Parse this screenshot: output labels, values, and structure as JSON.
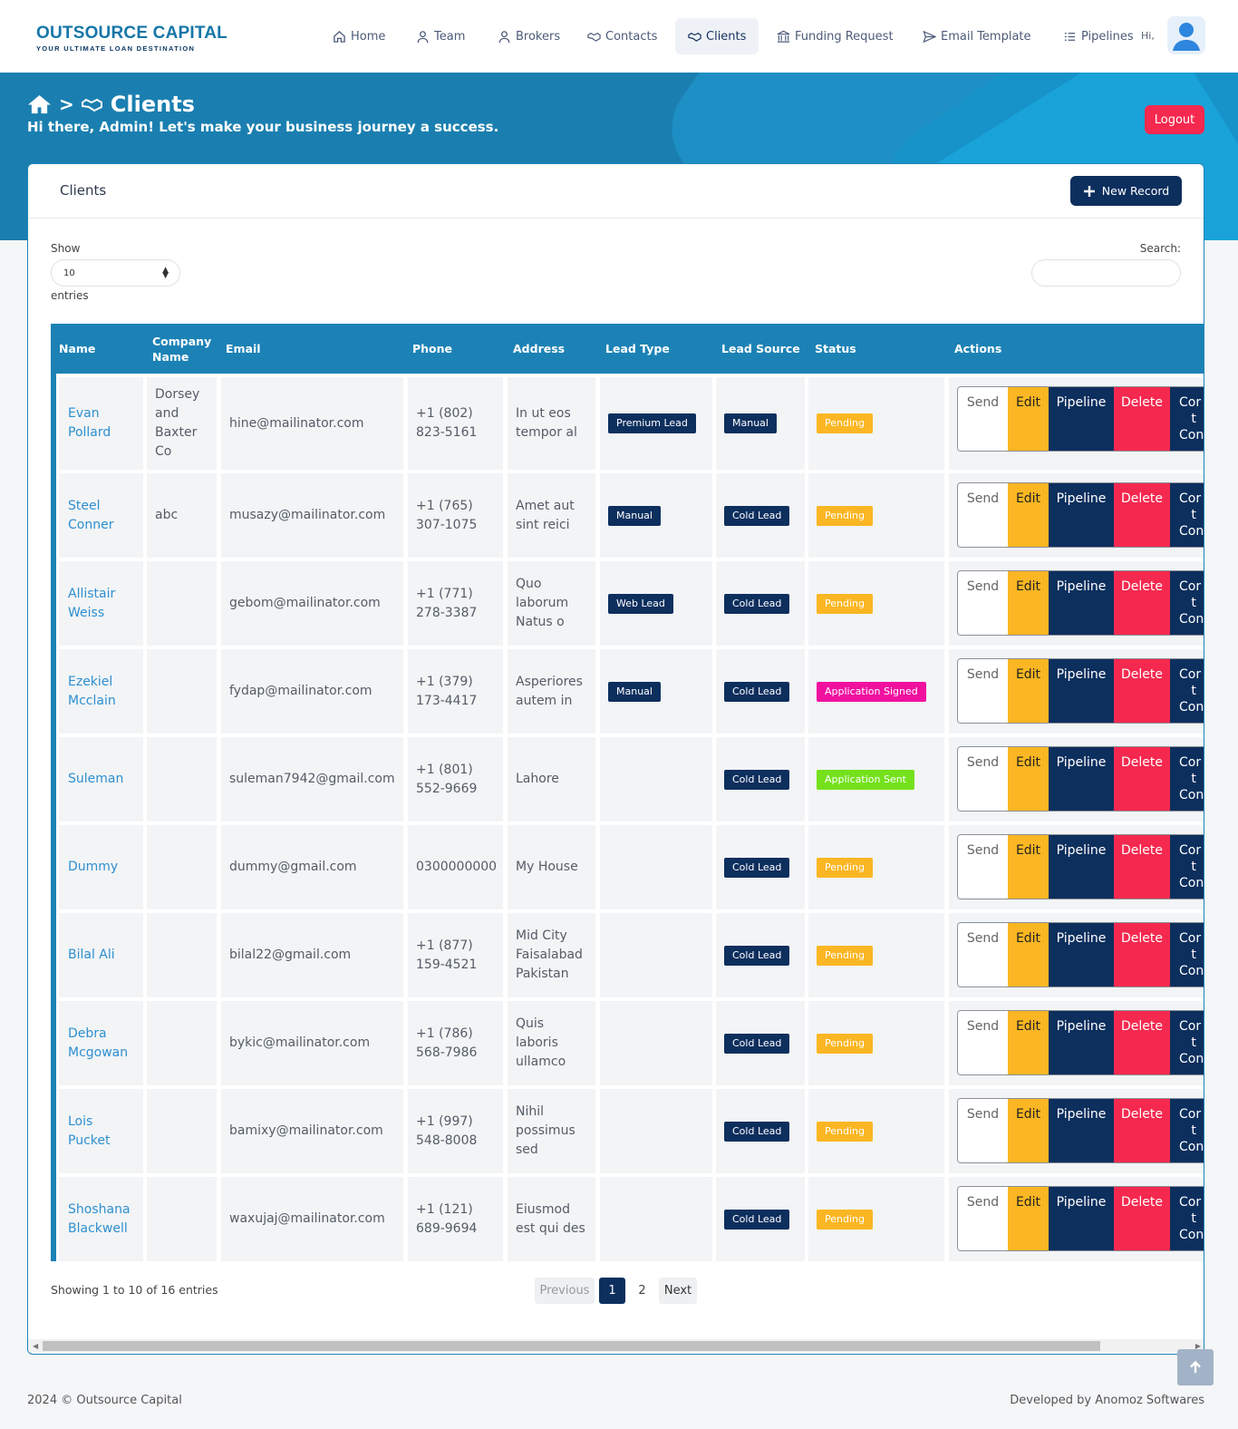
{
  "brand": {
    "title": "OUTSOURCE CAPITAL",
    "tagline": "YOUR ULTIMATE LOAN DESTINATION"
  },
  "nav": [
    {
      "label": "Home",
      "icon": "home-icon"
    },
    {
      "label": "Team",
      "icon": "user-icon"
    },
    {
      "label": "Brokers",
      "icon": "user-icon"
    },
    {
      "label": "Contacts",
      "icon": "handshake-icon"
    },
    {
      "label": "Clients",
      "icon": "handshake-icon",
      "active": true
    },
    {
      "label": "Funding Request",
      "icon": "bank-icon"
    },
    {
      "label": "Email Template",
      "icon": "send-icon"
    },
    {
      "label": "Pipelines",
      "icon": "list-icon"
    }
  ],
  "user": {
    "greeting": "Hi,",
    "avatar": "avatar-icon"
  },
  "header": {
    "separator": ">",
    "title": "Clients",
    "subtitle": "Hi there, Admin! Let's make your business journey a success.",
    "logout": "Logout"
  },
  "card": {
    "title": "Clients",
    "new_button": "New Record"
  },
  "controls": {
    "show_label": "Show",
    "show_value": "10",
    "entries_label": "entries",
    "search_label": "Search:"
  },
  "columns": [
    "Name",
    "Company Name",
    "Email",
    "Phone",
    "Address",
    "Lead Type",
    "Lead Source",
    "Status",
    "Actions"
  ],
  "actions": {
    "send": "Send",
    "edit": "Edit",
    "pipeline": "Pipeline",
    "delete": "Delete",
    "convert": "Cor\n   t\nCon"
  },
  "rows": [
    {
      "name": "Evan Pollard",
      "company": "Dorsey and Baxter Co",
      "email": "hine@mailinator.com",
      "phone": "+1 (802) 823-5161",
      "address": "In ut eos tempor al",
      "lead_type": "Premium Lead",
      "lead_source": "Manual",
      "status": "Pending"
    },
    {
      "name": "Steel Conner",
      "company": "abc",
      "email": "musazy@mailinator.com",
      "phone": "+1 (765) 307-1075",
      "address": "Amet aut sint reici",
      "lead_type": "Manual",
      "lead_source": "Cold Lead",
      "status": "Pending"
    },
    {
      "name": "Allistair Weiss",
      "company": "",
      "email": "gebom@mailinator.com",
      "phone": "+1 (771) 278-3387",
      "address": "Quo laborum Natus o",
      "lead_type": "Web Lead",
      "lead_source": "Cold Lead",
      "status": "Pending"
    },
    {
      "name": "Ezekiel Mcclain",
      "company": "",
      "email": "fydap@mailinator.com",
      "phone": "+1 (379) 173-4417",
      "address": "Asperiores autem in",
      "lead_type": "Manual",
      "lead_source": "Cold Lead",
      "status": "Application Signed"
    },
    {
      "name": "Suleman",
      "company": "",
      "email": "suleman7942@gmail.com",
      "phone": "+1 (801) 552-9669",
      "address": "Lahore",
      "lead_type": "",
      "lead_source": "Cold Lead",
      "status": "Application Sent"
    },
    {
      "name": "Dummy",
      "company": "",
      "email": "dummy@gmail.com",
      "phone": "0300000000",
      "address": "My House",
      "lead_type": "",
      "lead_source": "Cold Lead",
      "status": "Pending"
    },
    {
      "name": "Bilal Ali",
      "company": "",
      "email": "bilal22@gmail.com",
      "phone": "+1 (877) 159-4521",
      "address": "Mid City Faisalabad Pakistan",
      "lead_type": "",
      "lead_source": "Cold Lead",
      "status": "Pending"
    },
    {
      "name": "Debra Mcgowan",
      "company": "",
      "email": "bykic@mailinator.com",
      "phone": "+1 (786) 568-7986",
      "address": "Quis laboris ullamco",
      "lead_type": "",
      "lead_source": "Cold Lead",
      "status": "Pending"
    },
    {
      "name": "Lois Pucket",
      "company": "",
      "email": "bamixy@mailinator.com",
      "phone": "+1 (997) 548-8008",
      "address": "Nihil possimus sed",
      "lead_type": "",
      "lead_source": "Cold Lead",
      "status": "Pending"
    },
    {
      "name": "Shoshana Blackwell",
      "company": "",
      "email": "waxujaj@mailinator.com",
      "phone": "+1 (121) 689-9694",
      "address": "Eiusmod est qui des",
      "lead_type": "",
      "lead_source": "Cold Lead",
      "status": "Pending"
    }
  ],
  "pagination": {
    "summary": "Showing 1 to 10 of 16 entries",
    "previous": "Previous",
    "pages": [
      "1",
      "2"
    ],
    "next": "Next"
  },
  "footer": {
    "left": "2024 © Outsource Capital",
    "right": "Developed by Anomoz Softwares"
  },
  "colors": {
    "primary": "#1c82b5",
    "navy": "#0d2f5e",
    "danger": "#f5294f",
    "warning": "#fbb623",
    "signed": "#f0119f",
    "sent": "#74e11c"
  }
}
